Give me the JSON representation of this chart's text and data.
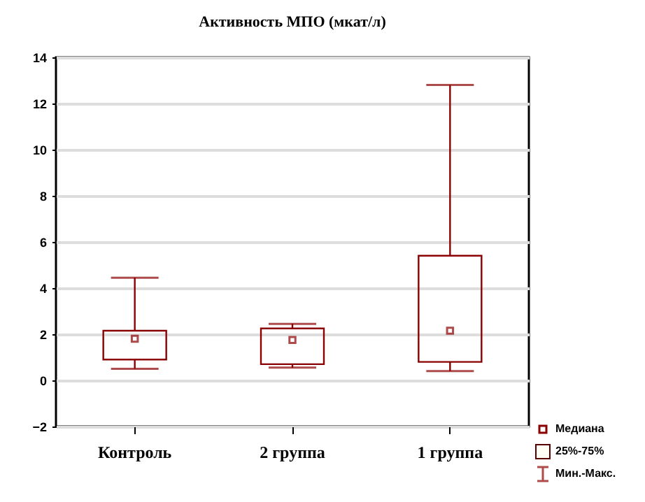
{
  "chart_data": {
    "type": "box",
    "title": "Активность  МПО  (мкат/л)",
    "categories": [
      "Контроль",
      "2 группа",
      "1 группа"
    ],
    "boxes": [
      {
        "low": 0.5,
        "q1": 0.9,
        "median": 1.8,
        "q3": 2.15,
        "high": 4.45
      },
      {
        "low": 0.55,
        "q1": 0.7,
        "median": 1.75,
        "q3": 2.25,
        "high": 2.45
      },
      {
        "low": 0.4,
        "q1": 0.8,
        "median": 2.15,
        "q3": 5.4,
        "high": 12.8
      }
    ],
    "color": "#8b0000",
    "ylim": [
      -2,
      14
    ],
    "yticks": [
      -2,
      0,
      2,
      4,
      6,
      8,
      10,
      12,
      14
    ],
    "grid": "y",
    "annotations": [
      "Медиана",
      "25%-75%",
      "Мин.-Макс."
    ]
  }
}
